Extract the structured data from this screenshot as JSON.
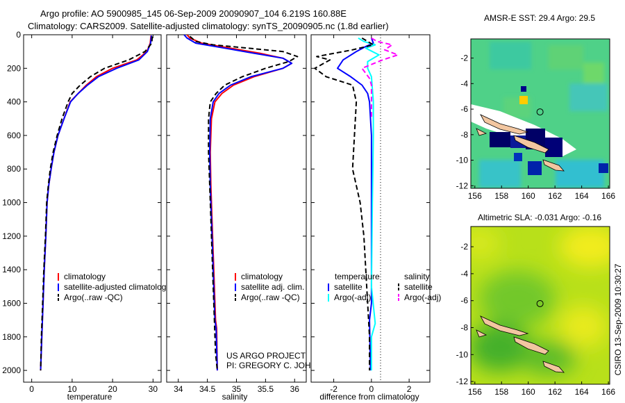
{
  "header": {
    "line1": "Argo profile: AO 5900985_145 06-Sep-2009 20090907_104 6.219S 160.88E",
    "line2": "Climatology: CARS2009. Satellite-adjusted climatology: synTS_20090905.nc (1.8d earlier)"
  },
  "credits": {
    "project": "US ARGO PROJECT",
    "pi": "PI: GREGORY C. JOHNSON",
    "stamp": "CSIRO 13-Sep-2009 10:30:27"
  },
  "chart_data": [
    {
      "type": "line",
      "id": "temperature",
      "xlabel": "temperature",
      "xlim": [
        -2,
        32
      ],
      "ylim": [
        2070,
        0
      ],
      "xticks": [
        0,
        10,
        20,
        30
      ],
      "yticks": [
        0,
        200,
        400,
        600,
        800,
        1000,
        1200,
        1400,
        1600,
        1800,
        2000
      ],
      "series": [
        {
          "name": "climatology",
          "color": "#ff0000",
          "dash": "",
          "points": [
            [
              29.5,
              5
            ],
            [
              29.3,
              50
            ],
            [
              28.5,
              100
            ],
            [
              26,
              150
            ],
            [
              20,
              200
            ],
            [
              16,
              250
            ],
            [
              13.5,
              300
            ],
            [
              11.5,
              350
            ],
            [
              9.5,
              400
            ],
            [
              8,
              500
            ],
            [
              6.5,
              600
            ],
            [
              5.5,
              700
            ],
            [
              4.8,
              800
            ],
            [
              4.2,
              900
            ],
            [
              3.8,
              1000
            ],
            [
              3.5,
              1200
            ],
            [
              3.1,
              1400
            ],
            [
              2.8,
              1600
            ],
            [
              2.5,
              1800
            ],
            [
              2.2,
              2000
            ]
          ]
        },
        {
          "name": "satellite-adjusted climatology",
          "color": "#0000ff",
          "dash": "",
          "points": [
            [
              29.6,
              5
            ],
            [
              29.4,
              50
            ],
            [
              28.6,
              100
            ],
            [
              26.5,
              150
            ],
            [
              21,
              200
            ],
            [
              16.5,
              250
            ],
            [
              13.8,
              300
            ],
            [
              11.5,
              350
            ],
            [
              9.6,
              400
            ],
            [
              8,
              500
            ],
            [
              6.5,
              600
            ],
            [
              5.5,
              700
            ],
            [
              4.8,
              800
            ],
            [
              4.2,
              900
            ],
            [
              3.8,
              1000
            ],
            [
              3.5,
              1200
            ],
            [
              3.1,
              1400
            ],
            [
              2.8,
              1600
            ],
            [
              2.5,
              1800
            ],
            [
              2.2,
              2000
            ]
          ]
        },
        {
          "name": "Argo(..raw -QC)",
          "color": "#000000",
          "dash": "7,4",
          "points": [
            [
              29.8,
              10
            ],
            [
              29.7,
              50
            ],
            [
              28,
              100
            ],
            [
              24,
              150
            ],
            [
              18,
              200
            ],
            [
              14.5,
              250
            ],
            [
              12,
              300
            ],
            [
              10,
              350
            ],
            [
              9,
              400
            ],
            [
              7.5,
              500
            ],
            [
              6.3,
              600
            ],
            [
              5.3,
              700
            ],
            [
              4.6,
              800
            ],
            [
              4.1,
              900
            ],
            [
              3.7,
              1000
            ],
            [
              3.4,
              1200
            ],
            [
              3,
              1400
            ],
            [
              2.7,
              1600
            ],
            [
              2.4,
              1800
            ],
            [
              2.2,
              2000
            ]
          ]
        }
      ],
      "legend": [
        "climatology",
        "satellite-adjusted climatology",
        "Argo(..raw -QC)"
      ]
    },
    {
      "type": "line",
      "id": "salinity",
      "xlabel": "salinity",
      "xlim": [
        33.8,
        36.2
      ],
      "ylim": [
        2070,
        0
      ],
      "xticks": [
        34,
        34.5,
        35,
        35.5,
        36
      ],
      "series": [
        {
          "name": "climatology",
          "color": "#ff0000",
          "dash": "",
          "points": [
            [
              34.15,
              0
            ],
            [
              34.2,
              20
            ],
            [
              34.4,
              50
            ],
            [
              34.9,
              80
            ],
            [
              35.4,
              110
            ],
            [
              35.8,
              140
            ],
            [
              35.95,
              170
            ],
            [
              35.8,
              200
            ],
            [
              35.3,
              250
            ],
            [
              34.95,
              300
            ],
            [
              34.75,
              350
            ],
            [
              34.63,
              400
            ],
            [
              34.57,
              500
            ],
            [
              34.55,
              700
            ],
            [
              34.56,
              900
            ],
            [
              34.58,
              1100
            ],
            [
              34.6,
              1300
            ],
            [
              34.62,
              1500
            ],
            [
              34.64,
              1700
            ],
            [
              34.66,
              1750
            ],
            [
              34.67,
              2000
            ]
          ]
        },
        {
          "name": "satellite adj. clim.",
          "color": "#0000ff",
          "dash": "",
          "points": [
            [
              34.1,
              0
            ],
            [
              34.15,
              20
            ],
            [
              34.3,
              50
            ],
            [
              34.8,
              80
            ],
            [
              35.3,
              110
            ],
            [
              35.8,
              140
            ],
            [
              35.95,
              170
            ],
            [
              35.8,
              200
            ],
            [
              35.25,
              250
            ],
            [
              34.9,
              300
            ],
            [
              34.7,
              350
            ],
            [
              34.6,
              400
            ],
            [
              34.55,
              500
            ],
            [
              34.54,
              700
            ],
            [
              34.55,
              900
            ],
            [
              34.57,
              1100
            ],
            [
              34.59,
              1300
            ],
            [
              34.61,
              1500
            ],
            [
              34.63,
              1700
            ],
            [
              34.65,
              1750
            ],
            [
              34.67,
              2000
            ]
          ]
        },
        {
          "name": "Argo(..raw -QC)",
          "color": "#000000",
          "dash": "7,4",
          "points": [
            [
              34.2,
              10
            ],
            [
              34.3,
              40
            ],
            [
              34.6,
              60
            ],
            [
              35.2,
              80
            ],
            [
              35.8,
              100
            ],
            [
              36.05,
              130
            ],
            [
              35.9,
              160
            ],
            [
              35.5,
              200
            ],
            [
              35.1,
              250
            ],
            [
              34.8,
              300
            ],
            [
              34.65,
              350
            ],
            [
              34.55,
              400
            ],
            [
              34.52,
              500
            ],
            [
              34.52,
              700
            ],
            [
              34.54,
              900
            ],
            [
              34.56,
              1100
            ],
            [
              34.58,
              1300
            ],
            [
              34.6,
              1500
            ],
            [
              34.62,
              1700
            ],
            [
              34.64,
              1900
            ],
            [
              34.67,
              2000
            ]
          ]
        }
      ],
      "legend": [
        "climatology",
        "satellite adj. clim.",
        "Argo(..raw -QC)"
      ]
    },
    {
      "type": "line",
      "id": "difference",
      "xlabel": "difference from climatology",
      "xlim": [
        -3.2,
        3.1
      ],
      "ylim": [
        2070,
        0
      ],
      "xticks": [
        -2,
        0,
        2
      ],
      "series": [
        {
          "name": "temperature satellite",
          "color": "#0000ff",
          "dash": "",
          "points": [
            [
              0,
              20
            ],
            [
              0.1,
              50
            ],
            [
              -0.3,
              70
            ],
            [
              -0.8,
              100
            ],
            [
              -1.5,
              150
            ],
            [
              -1.8,
              200
            ],
            [
              -1.1,
              250
            ],
            [
              -0.5,
              300
            ],
            [
              -0.2,
              350
            ],
            [
              -0.1,
              400
            ],
            [
              0,
              600
            ],
            [
              0,
              1600
            ],
            [
              -0.1,
              1700
            ],
            [
              -0.05,
              2000
            ]
          ]
        },
        {
          "name": "salinity satellite",
          "color": "#00ffff",
          "dash": "",
          "points": [
            [
              -0.7,
              20
            ],
            [
              -0.4,
              40
            ],
            [
              0.2,
              60
            ],
            [
              -0.3,
              80
            ],
            [
              0.4,
              120
            ],
            [
              -0.2,
              160
            ],
            [
              -0.2,
              200
            ],
            [
              0,
              250
            ],
            [
              0.1,
              400
            ],
            [
              0.1,
              600
            ],
            [
              0.05,
              1000
            ],
            [
              0,
              1500
            ],
            [
              0.2,
              1720
            ],
            [
              0,
              1800
            ],
            [
              0,
              2000
            ]
          ]
        },
        {
          "name": "temperature Argo(-adj)",
          "color": "#000000",
          "dash": "7,4",
          "points": [
            [
              -0.5,
              20
            ],
            [
              0.1,
              60
            ],
            [
              -1,
              90
            ],
            [
              -2.9,
              130
            ],
            [
              -2.2,
              150
            ],
            [
              -3,
              200
            ],
            [
              -2.4,
              250
            ],
            [
              -1,
              300
            ],
            [
              -0.8,
              400
            ],
            [
              -0.9,
              600
            ],
            [
              -1,
              800
            ],
            [
              -0.6,
              1000
            ],
            [
              -0.4,
              1200
            ],
            [
              -0.3,
              1400
            ],
            [
              -0.2,
              1600
            ],
            [
              -0.1,
              1800
            ],
            [
              -0.1,
              2000
            ]
          ]
        },
        {
          "name": "salinity Argo(-adj)",
          "color": "#ff00ff",
          "dash": "7,4",
          "points": [
            [
              0,
              20
            ],
            [
              0.3,
              40
            ],
            [
              1.1,
              60
            ],
            [
              0.7,
              90
            ],
            [
              1.4,
              120
            ],
            [
              0.6,
              150
            ],
            [
              -0.5,
              200
            ],
            [
              -0.1,
              260
            ],
            [
              0,
              300
            ],
            [
              0,
              400
            ],
            [
              0,
              500
            ]
          ]
        }
      ],
      "legend_headers": [
        "temperature",
        "salinity"
      ],
      "legend": [
        "satellite",
        "Argo(-adj)",
        "satellite",
        "Argo(-adj)"
      ]
    },
    {
      "type": "heatmap",
      "id": "sst-map",
      "title": "AMSR-E SST: 29.4 Argo: 29.5",
      "xlim": [
        155.7,
        166.1
      ],
      "ylim": [
        -12.2,
        -0.5
      ],
      "xticks": [
        156,
        158,
        160,
        162,
        164,
        166
      ],
      "yticks": [
        -2,
        -4,
        -6,
        -8,
        -10,
        -12
      ],
      "marker": [
        160.88,
        -6.219
      ]
    },
    {
      "type": "heatmap",
      "id": "sla-map",
      "title": "Altimetric SLA: -0.031 Argo: -0.16",
      "xlim": [
        155.7,
        166.1
      ],
      "ylim": [
        -12.2,
        -0.5
      ],
      "xticks": [
        156,
        158,
        160,
        162,
        164,
        166
      ],
      "yticks": [
        -2,
        -4,
        -6,
        -8,
        -10,
        -12
      ],
      "marker": [
        160.88,
        -6.219
      ]
    }
  ]
}
